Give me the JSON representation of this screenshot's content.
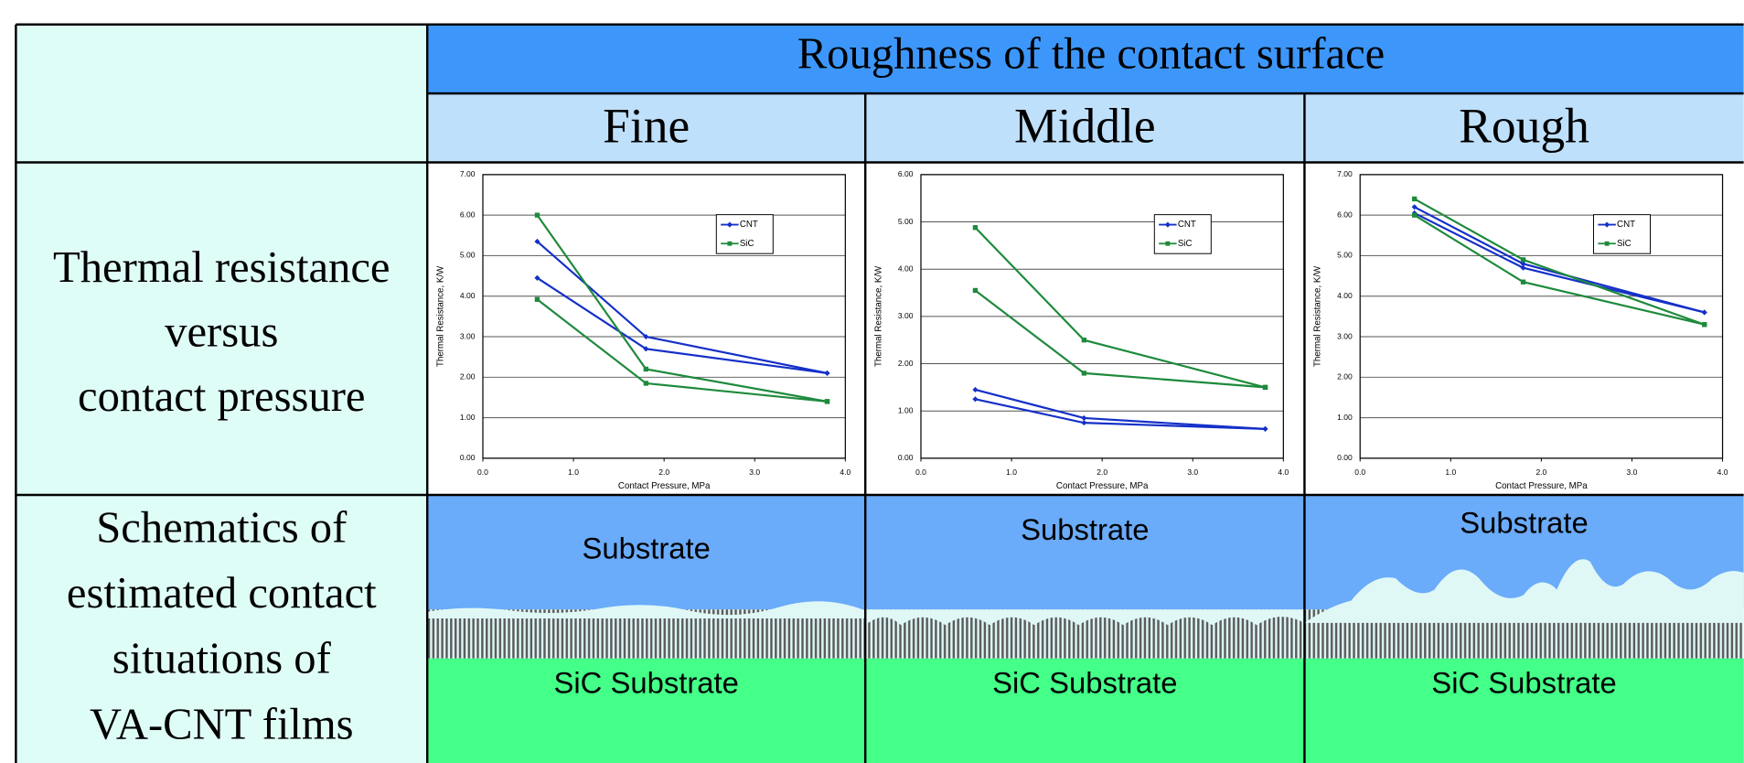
{
  "table": {
    "header": "Roughness of the contact surface",
    "columns": [
      "Fine",
      "Middle",
      "Rough"
    ],
    "rows": [
      {
        "label": [
          "Thermal resistance",
          "versus",
          "contact pressure"
        ]
      },
      {
        "label": [
          "Schematics of",
          "estimated contact",
          "situations of",
          "VA-CNT films"
        ]
      }
    ],
    "schematics": [
      {
        "top": "Substrate",
        "bottom": "SiC Substrate"
      },
      {
        "top": "Substrate",
        "bottom": "SiC Substrate"
      },
      {
        "top": "Substrate",
        "bottom": "SiC Substrate"
      }
    ]
  },
  "chart_data": [
    {
      "type": "line",
      "xlabel": "Contact Pressure, MPa",
      "ylabel": "Thermal Resistance, K/W",
      "x": [
        0.6,
        1.8,
        3.8
      ],
      "xlim": [
        0,
        4
      ],
      "xticks": [
        {
          "value": 0,
          "label": "0.0"
        },
        {
          "value": 1,
          "label": "1.0"
        },
        {
          "value": 2,
          "label": "2.0"
        },
        {
          "value": 3,
          "label": "3.0"
        },
        {
          "value": 4,
          "label": "4.0"
        }
      ],
      "ylim": [
        0,
        7
      ],
      "yticks": [
        {
          "value": 0,
          "label": "0.00"
        },
        {
          "value": 1,
          "label": "1.00"
        },
        {
          "value": 2,
          "label": "2.00"
        },
        {
          "value": 3,
          "label": "3.00"
        },
        {
          "value": 4,
          "label": "4.00"
        },
        {
          "value": 5,
          "label": "5.00"
        },
        {
          "value": 6,
          "label": "6.00"
        },
        {
          "value": 7,
          "label": "7.00"
        }
      ],
      "grid": true,
      "legend": "upper right",
      "series": [
        {
          "name": "CNT",
          "color": "#1530c8",
          "lines": [
            [
              5.35,
              3.0,
              2.1
            ],
            [
              4.45,
              2.7,
              2.1
            ]
          ]
        },
        {
          "name": "SiC",
          "color": "#1e8a3c",
          "lines": [
            [
              6.0,
              2.2,
              1.4
            ],
            [
              3.92,
              1.85,
              1.4
            ]
          ]
        }
      ]
    },
    {
      "type": "line",
      "xlabel": "Contact Pressure, MPa",
      "ylabel": "Thermal Resistance, K/W",
      "x": [
        0.6,
        1.8,
        3.8
      ],
      "xlim": [
        0,
        4
      ],
      "xticks": [
        {
          "value": 0,
          "label": "0.0"
        },
        {
          "value": 1,
          "label": "1.0"
        },
        {
          "value": 2,
          "label": "2.0"
        },
        {
          "value": 3,
          "label": "3.0"
        },
        {
          "value": 4,
          "label": "4.0"
        }
      ],
      "ylim": [
        0,
        6
      ],
      "yticks": [
        {
          "value": 0,
          "label": "0.00"
        },
        {
          "value": 1,
          "label": "1.00"
        },
        {
          "value": 2,
          "label": "2.00"
        },
        {
          "value": 3,
          "label": "3.00"
        },
        {
          "value": 4,
          "label": "4.00"
        },
        {
          "value": 5,
          "label": "5.00"
        },
        {
          "value": 6,
          "label": "6.00"
        }
      ],
      "grid": true,
      "legend": "upper right",
      "series": [
        {
          "name": "CNT",
          "color": "#1530c8",
          "lines": [
            [
              1.45,
              0.85,
              0.62
            ],
            [
              1.25,
              0.75,
              0.62
            ]
          ]
        },
        {
          "name": "SiC",
          "color": "#1e8a3c",
          "lines": [
            [
              4.88,
              2.5,
              1.5
            ],
            [
              3.55,
              1.8,
              1.5
            ]
          ]
        }
      ]
    },
    {
      "type": "line",
      "xlabel": "Contact Pressure, MPa",
      "ylabel": "Thermal Resistance, K/W",
      "x": [
        0.6,
        1.8,
        3.8
      ],
      "xlim": [
        0,
        4
      ],
      "xticks": [
        {
          "value": 0,
          "label": "0.0"
        },
        {
          "value": 1,
          "label": "1.0"
        },
        {
          "value": 2,
          "label": "2.0"
        },
        {
          "value": 3,
          "label": "3.0"
        },
        {
          "value": 4,
          "label": "4.0"
        }
      ],
      "ylim": [
        0,
        7
      ],
      "yticks": [
        {
          "value": 0,
          "label": "0.00"
        },
        {
          "value": 1,
          "label": "1.00"
        },
        {
          "value": 2,
          "label": "2.00"
        },
        {
          "value": 3,
          "label": "3.00"
        },
        {
          "value": 4,
          "label": "4.00"
        },
        {
          "value": 5,
          "label": "5.00"
        },
        {
          "value": 6,
          "label": "6.00"
        },
        {
          "value": 7,
          "label": "7.00"
        }
      ],
      "grid": true,
      "legend": "upper right",
      "series": [
        {
          "name": "CNT",
          "color": "#1530c8",
          "lines": [
            [
              6.2,
              4.8,
              3.6
            ],
            [
              6.05,
              4.7,
              3.6
            ]
          ]
        },
        {
          "name": "SiC",
          "color": "#1e8a3c",
          "lines": [
            [
              6.4,
              4.9,
              3.3
            ],
            [
              6.0,
              4.35,
              3.3
            ]
          ]
        }
      ]
    }
  ]
}
